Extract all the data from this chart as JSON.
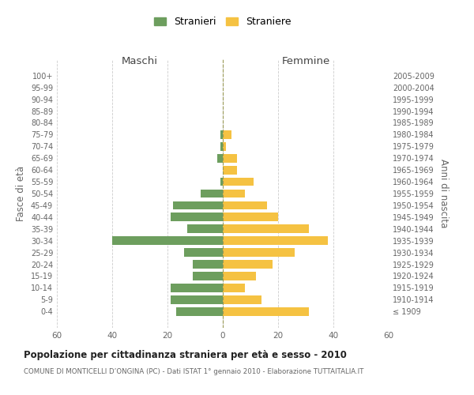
{
  "age_groups": [
    "100+",
    "95-99",
    "90-94",
    "85-89",
    "80-84",
    "75-79",
    "70-74",
    "65-69",
    "60-64",
    "55-59",
    "50-54",
    "45-49",
    "40-44",
    "35-39",
    "30-34",
    "25-29",
    "20-24",
    "15-19",
    "10-14",
    "5-9",
    "0-4"
  ],
  "birth_years": [
    "≤ 1909",
    "1910-1914",
    "1915-1919",
    "1920-1924",
    "1925-1929",
    "1930-1934",
    "1935-1939",
    "1940-1944",
    "1945-1949",
    "1950-1954",
    "1955-1959",
    "1960-1964",
    "1965-1969",
    "1970-1974",
    "1975-1979",
    "1980-1984",
    "1985-1989",
    "1990-1994",
    "1995-1999",
    "2000-2004",
    "2005-2009"
  ],
  "males": [
    0,
    0,
    0,
    0,
    0,
    1,
    1,
    2,
    0,
    1,
    8,
    18,
    19,
    13,
    40,
    14,
    11,
    11,
    19,
    19,
    17
  ],
  "females": [
    0,
    0,
    0,
    0,
    0,
    3,
    1,
    5,
    5,
    11,
    8,
    16,
    20,
    31,
    38,
    26,
    18,
    12,
    8,
    14,
    31
  ],
  "male_color": "#6d9e5e",
  "female_color": "#f5c242",
  "background_color": "#ffffff",
  "grid_color": "#cccccc",
  "title": "Popolazione per cittadinanza straniera per età e sesso - 2010",
  "subtitle": "COMUNE DI MONTICELLI D’ONGINA (PC) - Dati ISTAT 1° gennaio 2010 - Elaborazione TUTTAITALIA.IT",
  "xlabel_left": "Maschi",
  "xlabel_right": "Femmine",
  "ylabel_left": "Fasce di età",
  "ylabel_right": "Anni di nascita",
  "legend_male": "Stranieri",
  "legend_female": "Straniere",
  "xlim": 60
}
